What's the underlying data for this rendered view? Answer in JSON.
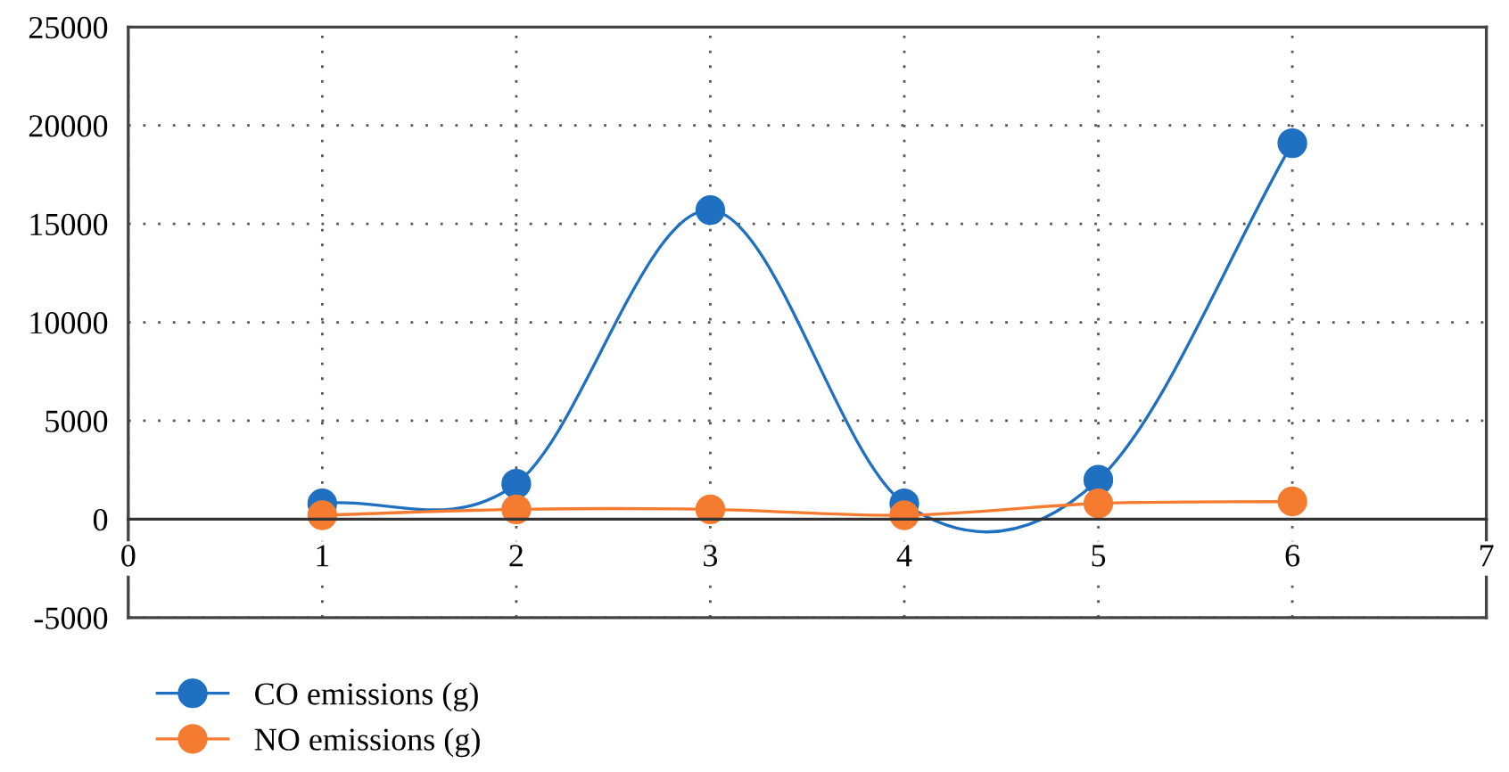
{
  "chart_data": {
    "type": "line",
    "x": [
      1,
      2,
      3,
      4,
      5,
      6
    ],
    "series": [
      {
        "name": "CO emissions (g)",
        "color": "#1f70c1",
        "values": [
          800,
          1800,
          15700,
          800,
          2000,
          19100
        ]
      },
      {
        "name": "NO emissions (g)",
        "color": "#f47b30",
        "values": [
          200,
          500,
          500,
          200,
          800,
          900
        ]
      }
    ],
    "xlim": [
      0,
      7
    ],
    "xticks": [
      0,
      1,
      2,
      3,
      4,
      5,
      6,
      7
    ],
    "ylim": [
      -5000,
      25000
    ],
    "yticks": [
      -5000,
      0,
      5000,
      10000,
      15000,
      20000,
      25000
    ],
    "grid": true,
    "legend": "bottom left",
    "marker": "circle",
    "line_style": "solid"
  }
}
